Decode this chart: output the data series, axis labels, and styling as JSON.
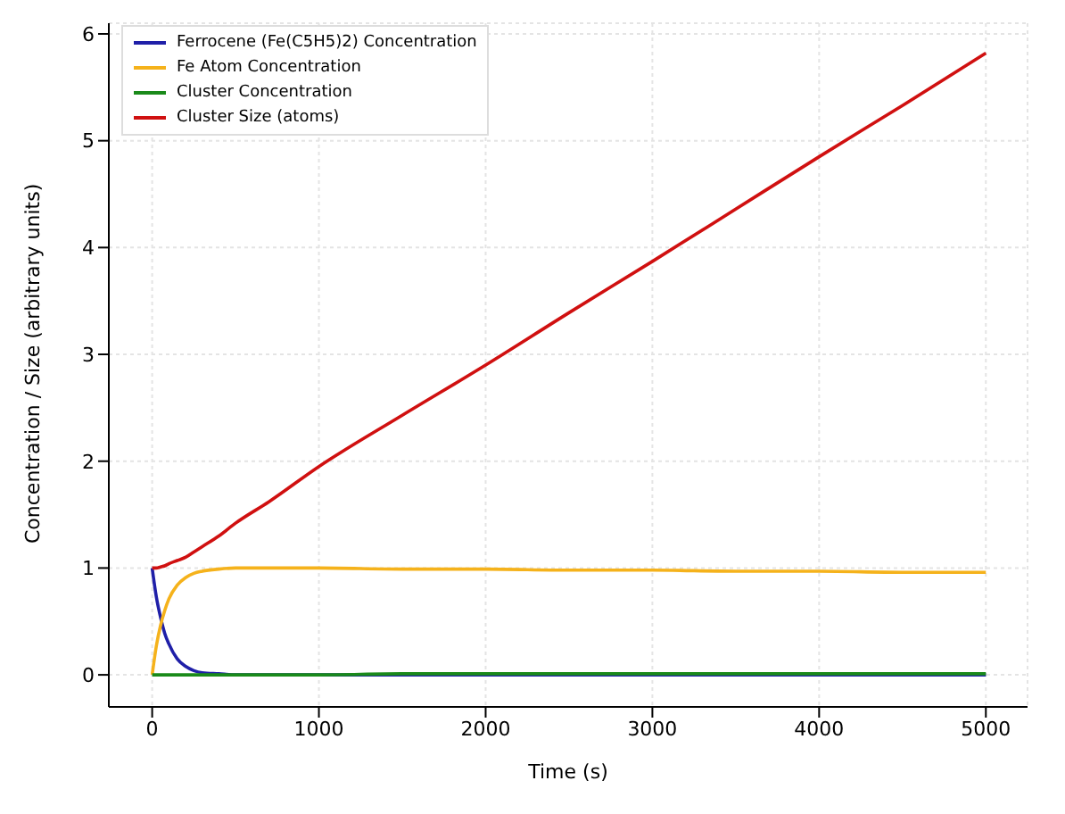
{
  "chart_data": {
    "type": "line",
    "xlabel": "Time (s)",
    "ylabel": "Concentration / Size (arbitrary units)",
    "x": [
      0,
      25,
      50,
      75,
      100,
      150,
      200,
      250,
      300,
      400,
      500,
      700,
      1000,
      1500,
      2000,
      2500,
      3000,
      3500,
      4000,
      4500,
      5000
    ],
    "series": [
      {
        "name": "Ferrocene (Fe(C5H5)2) Concentration",
        "color": "#1f1fa8",
        "values": [
          1,
          0.73,
          0.54,
          0.39,
          0.29,
          0.15,
          0.08,
          0.04,
          0.02,
          0.01,
          0,
          0,
          0,
          0,
          0,
          0,
          0,
          0,
          0,
          0,
          0
        ]
      },
      {
        "name": "Fe Atom Concentration",
        "color": "#f5b21b",
        "values": [
          0,
          0.27,
          0.46,
          0.6,
          0.71,
          0.84,
          0.91,
          0.95,
          0.97,
          0.99,
          1,
          1,
          1,
          0.99,
          0.99,
          0.98,
          0.98,
          0.97,
          0.97,
          0.96,
          0.96
        ]
      },
      {
        "name": "Cluster Concentration",
        "color": "#1a8a1a",
        "values": [
          0,
          0,
          0,
          0,
          0,
          0,
          0,
          0,
          0,
          0,
          0,
          0,
          0,
          0.01,
          0.01,
          0.01,
          0.01,
          0.01,
          0.01,
          0.01,
          0.01
        ]
      },
      {
        "name": "Cluster Size (atoms)",
        "color": "#d01010",
        "values": [
          1,
          1,
          1.01,
          1.02,
          1.04,
          1.07,
          1.1,
          1.15,
          1.2,
          1.3,
          1.42,
          1.62,
          1.95,
          2.43,
          2.9,
          3.39,
          3.87,
          4.36,
          4.85,
          5.33,
          5.82
        ]
      }
    ],
    "xlim": [
      -260,
      5250
    ],
    "ylim": [
      -0.3,
      6.1
    ],
    "xticks": [
      0,
      1000,
      2000,
      3000,
      4000,
      5000
    ],
    "yticks": [
      0,
      1,
      2,
      3,
      4,
      5,
      6
    ],
    "grid": true,
    "legend": "top left",
    "marker": "none",
    "line_style": "solid"
  }
}
